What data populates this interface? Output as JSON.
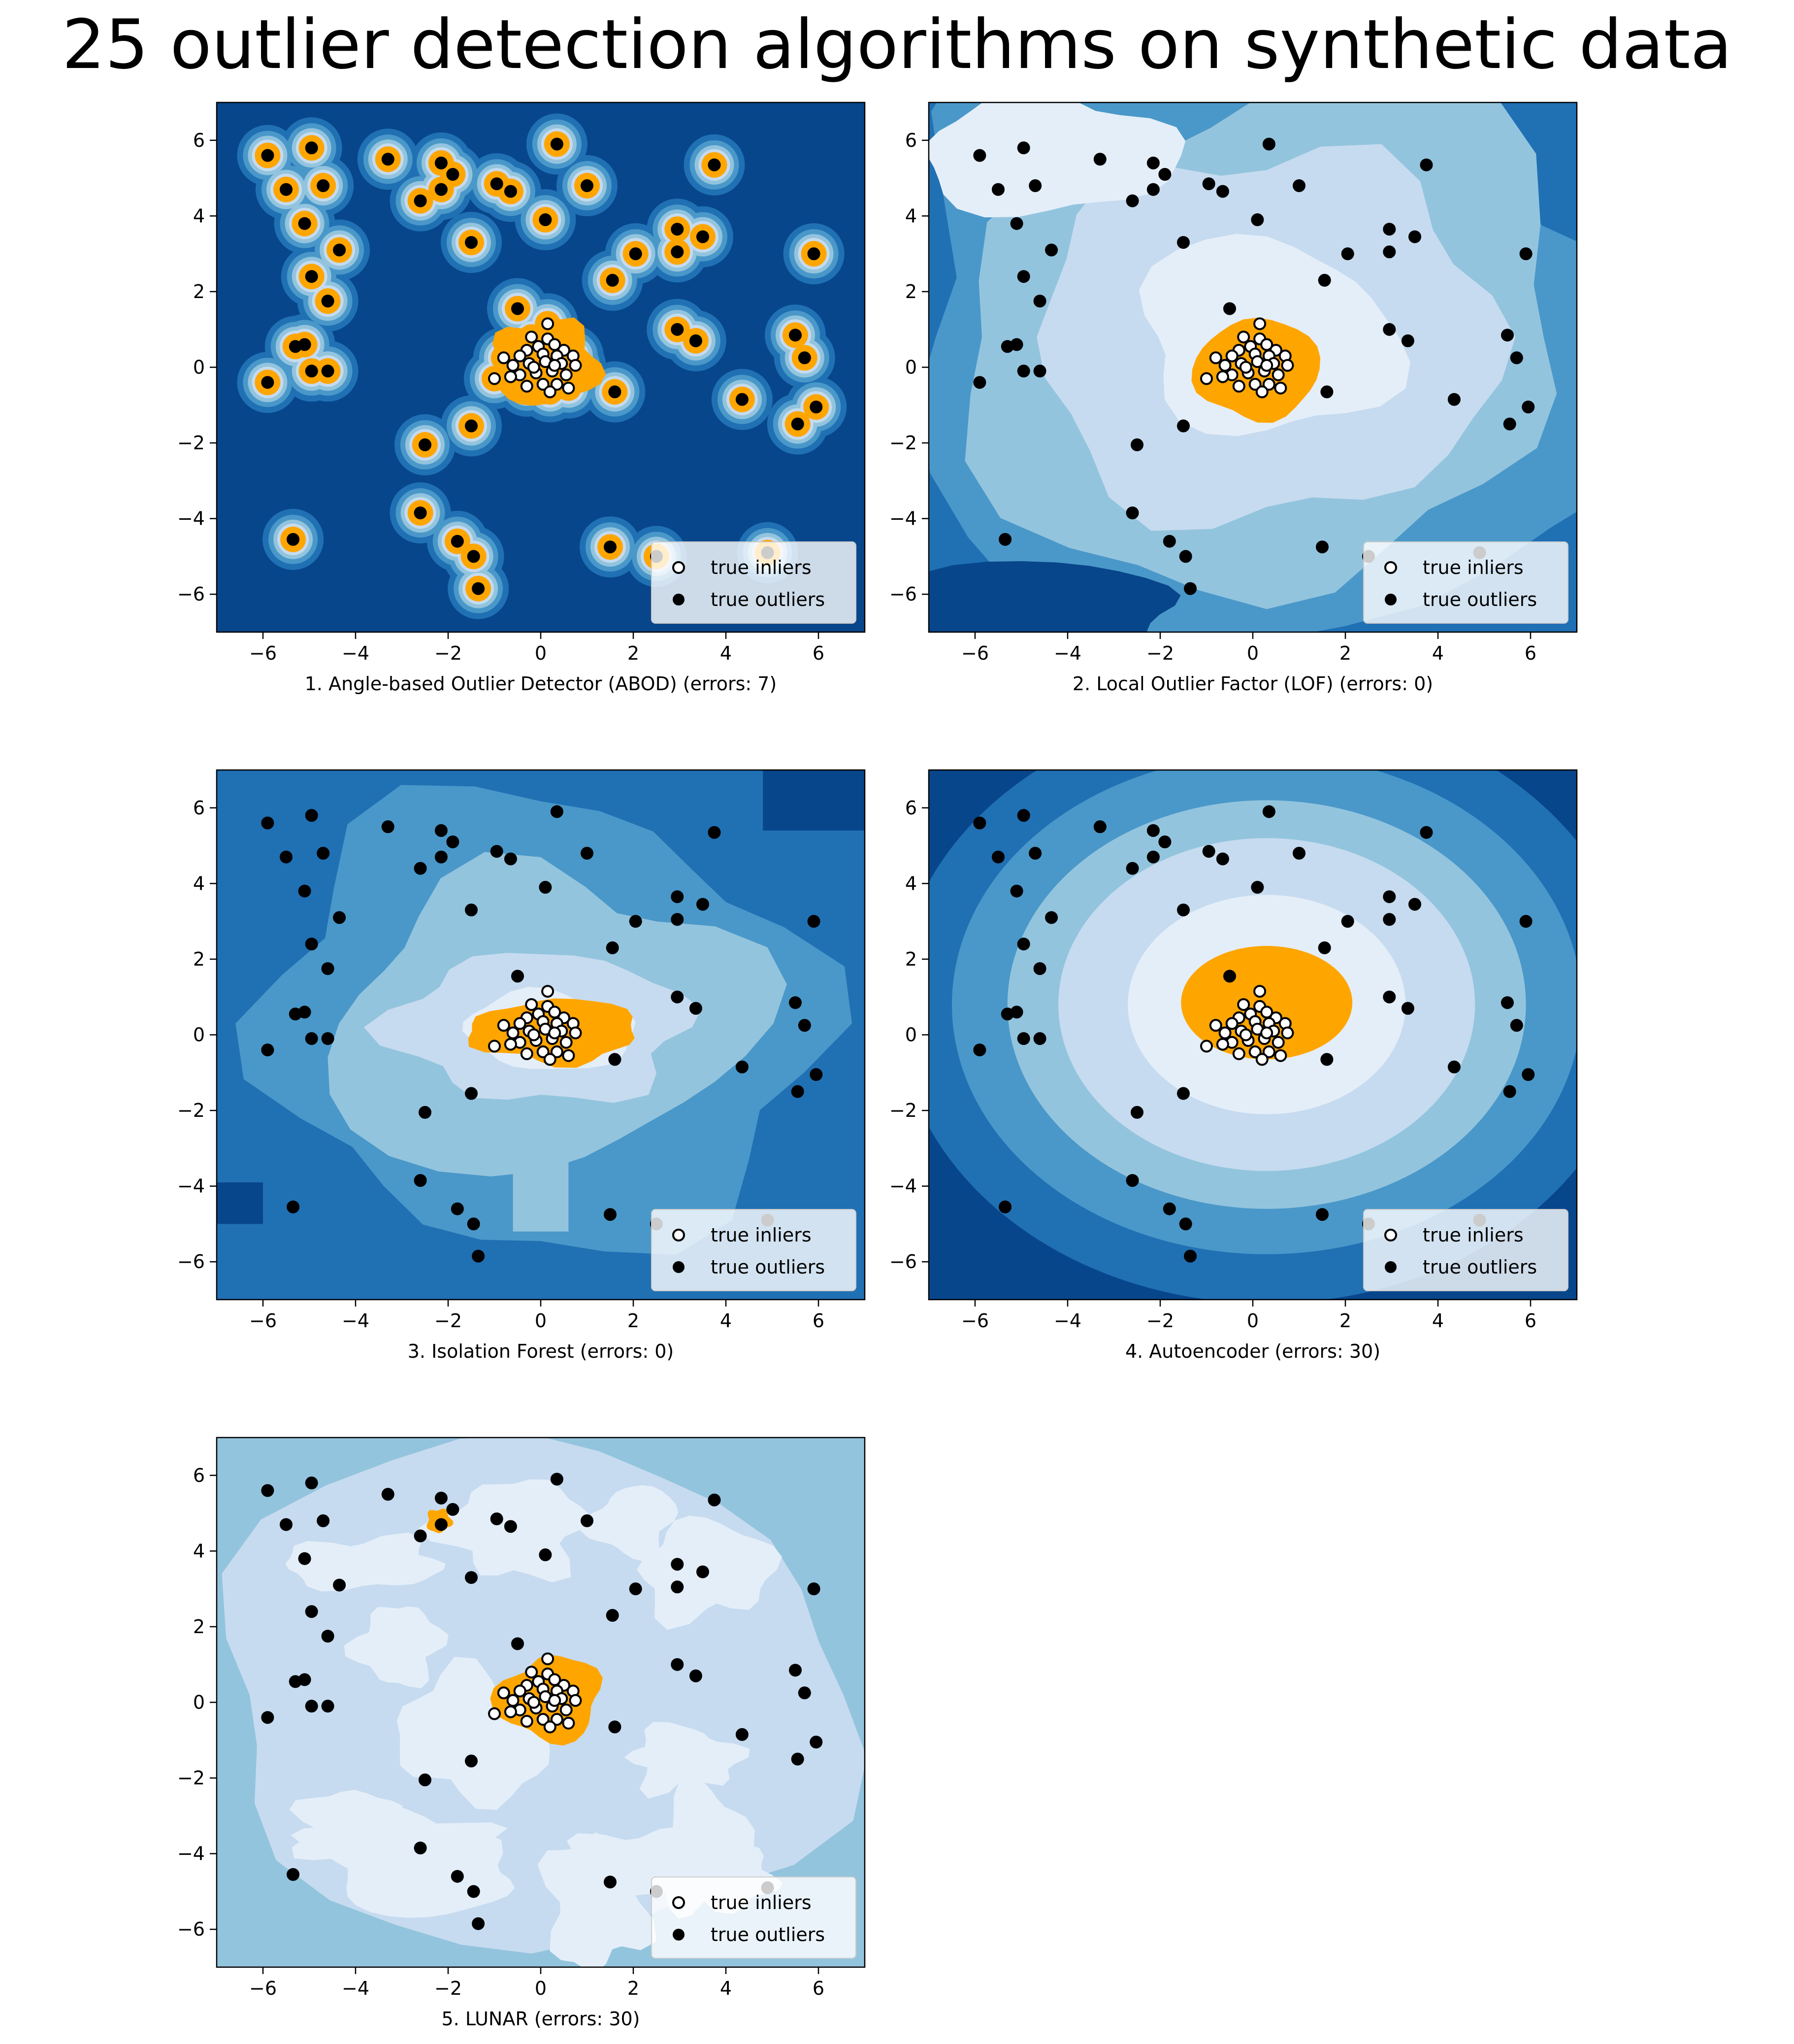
{
  "title": "25 outlier detection algorithms on synthetic data",
  "colors": {
    "orange": "#FFA500",
    "blues": [
      "#08468B",
      "#2070B4",
      "#4A98C9",
      "#93C4DE",
      "#C6DBEF",
      "#E4EEF9"
    ]
  },
  "chart_data": [
    {
      "type": "scatter",
      "title": "1. Angle-based Outlier Detector (ABOD) (errors: 7)",
      "xlabel": "1. Angle-based Outlier Detector (ABOD) (errors: 7)",
      "xlim": [
        -7,
        7
      ],
      "ylim": [
        -7,
        7
      ],
      "xticks": [
        -6,
        -4,
        -2,
        0,
        2,
        4,
        6
      ],
      "yticks": [
        -6,
        -4,
        -2,
        0,
        2,
        4,
        6
      ],
      "background": "local-islands",
      "legend": {
        "position": "lower-right",
        "entries": [
          "true inliers",
          "true outliers"
        ]
      }
    },
    {
      "type": "scatter",
      "title": "2. Local Outlier Factor (LOF) (errors: 0)",
      "xlabel": "2. Local Outlier Factor (LOF) (errors: 0)",
      "xlim": [
        -7,
        7
      ],
      "ylim": [
        -7,
        7
      ],
      "xticks": [
        -6,
        -4,
        -2,
        0,
        2,
        4,
        6
      ],
      "yticks": [
        -6,
        -4,
        -2,
        0,
        2,
        4,
        6
      ],
      "background": "radial-noisy",
      "legend": {
        "position": "lower-right",
        "entries": [
          "true inliers",
          "true outliers"
        ]
      }
    },
    {
      "type": "scatter",
      "title": "3. Isolation Forest (errors: 0)",
      "xlabel": "3. Isolation Forest (errors: 0)",
      "xlim": [
        -7,
        7
      ],
      "ylim": [
        -7,
        7
      ],
      "xticks": [
        -6,
        -4,
        -2,
        0,
        2,
        4,
        6
      ],
      "yticks": [
        -6,
        -4,
        -2,
        0,
        2,
        4,
        6
      ],
      "background": "cross",
      "legend": {
        "position": "lower-right",
        "entries": [
          "true inliers",
          "true outliers"
        ]
      }
    },
    {
      "type": "scatter",
      "title": "4. Autoencoder (errors: 30)",
      "xlabel": "4. Autoencoder (errors: 30)",
      "xlim": [
        -7,
        7
      ],
      "ylim": [
        -7,
        7
      ],
      "xticks": [
        -6,
        -4,
        -2,
        0,
        2,
        4,
        6
      ],
      "yticks": [
        -6,
        -4,
        -2,
        0,
        2,
        4,
        6
      ],
      "background": "ellipses",
      "legend": {
        "position": "lower-right",
        "entries": [
          "true inliers",
          "true outliers"
        ]
      }
    },
    {
      "type": "scatter",
      "title": "5. LUNAR (errors: 30)",
      "xlabel": "5. LUNAR (errors: 30)",
      "xlim": [
        -7,
        7
      ],
      "ylim": [
        -7,
        7
      ],
      "xticks": [
        -6,
        -4,
        -2,
        0,
        2,
        4,
        6
      ],
      "yticks": [
        -6,
        -4,
        -2,
        0,
        2,
        4,
        6
      ],
      "background": "flat-light",
      "legend": {
        "position": "lower-right",
        "entries": [
          "true inliers",
          "true outliers"
        ]
      }
    }
  ],
  "outliers": [
    [
      -5.9,
      5.6
    ],
    [
      -5.5,
      4.7
    ],
    [
      -5.1,
      3.8
    ],
    [
      -4.95,
      5.8
    ],
    [
      -4.7,
      4.8
    ],
    [
      -4.35,
      3.1
    ],
    [
      -4.95,
      2.4
    ],
    [
      -4.6,
      1.75
    ],
    [
      -5.3,
      0.55
    ],
    [
      -5.1,
      0.6
    ],
    [
      -5.9,
      -0.4
    ],
    [
      -4.95,
      -0.1
    ],
    [
      -4.6,
      -0.1
    ],
    [
      -5.35,
      -4.55
    ],
    [
      -3.3,
      5.5
    ],
    [
      -2.15,
      5.4
    ],
    [
      -1.9,
      5.1
    ],
    [
      -2.15,
      4.7
    ],
    [
      -2.6,
      4.4
    ],
    [
      -0.95,
      4.85
    ],
    [
      -0.65,
      4.65
    ],
    [
      -1.5,
      3.3
    ],
    [
      0.35,
      5.9
    ],
    [
      1.0,
      4.8
    ],
    [
      0.1,
      3.9
    ],
    [
      3.75,
      5.35
    ],
    [
      2.95,
      3.65
    ],
    [
      3.5,
      3.45
    ],
    [
      2.05,
      3.0
    ],
    [
      2.95,
      3.05
    ],
    [
      5.9,
      3.0
    ],
    [
      1.55,
      2.3
    ],
    [
      -0.5,
      1.55
    ],
    [
      2.95,
      1.0
    ],
    [
      3.35,
      0.7
    ],
    [
      5.5,
      0.85
    ],
    [
      5.7,
      0.25
    ],
    [
      1.6,
      -0.65
    ],
    [
      5.95,
      -1.05
    ],
    [
      5.55,
      -1.5
    ],
    [
      4.35,
      -0.85
    ],
    [
      -1.5,
      -1.55
    ],
    [
      -2.5,
      -2.05
    ],
    [
      -2.6,
      -3.85
    ],
    [
      -1.8,
      -4.6
    ],
    [
      -1.45,
      -5.0
    ],
    [
      -1.35,
      -5.85
    ],
    [
      1.5,
      -4.75
    ],
    [
      2.5,
      -5.0
    ],
    [
      4.9,
      -4.9
    ]
  ],
  "inliers": [
    [
      0.15,
      1.15
    ],
    [
      -0.2,
      0.8
    ],
    [
      0.15,
      0.75
    ],
    [
      -0.05,
      0.55
    ],
    [
      0.3,
      0.6
    ],
    [
      -0.3,
      0.45
    ],
    [
      0.5,
      0.45
    ],
    [
      -0.8,
      0.25
    ],
    [
      -0.45,
      0.3
    ],
    [
      0.05,
      0.35
    ],
    [
      0.35,
      0.3
    ],
    [
      0.7,
      0.3
    ],
    [
      -0.6,
      0.05
    ],
    [
      -0.25,
      0.1
    ],
    [
      0.1,
      0.15
    ],
    [
      0.45,
      0.1
    ],
    [
      0.75,
      0.05
    ],
    [
      -1.0,
      -0.3
    ],
    [
      -0.45,
      -0.2
    ],
    [
      -0.1,
      -0.15
    ],
    [
      0.25,
      -0.1
    ],
    [
      0.55,
      -0.2
    ],
    [
      -0.3,
      -0.5
    ],
    [
      0.05,
      -0.45
    ],
    [
      0.35,
      -0.45
    ],
    [
      0.6,
      -0.55
    ],
    [
      -0.65,
      -0.25
    ],
    [
      0.2,
      -0.65
    ],
    [
      -0.15,
      0.0
    ],
    [
      0.3,
      0.05
    ]
  ]
}
